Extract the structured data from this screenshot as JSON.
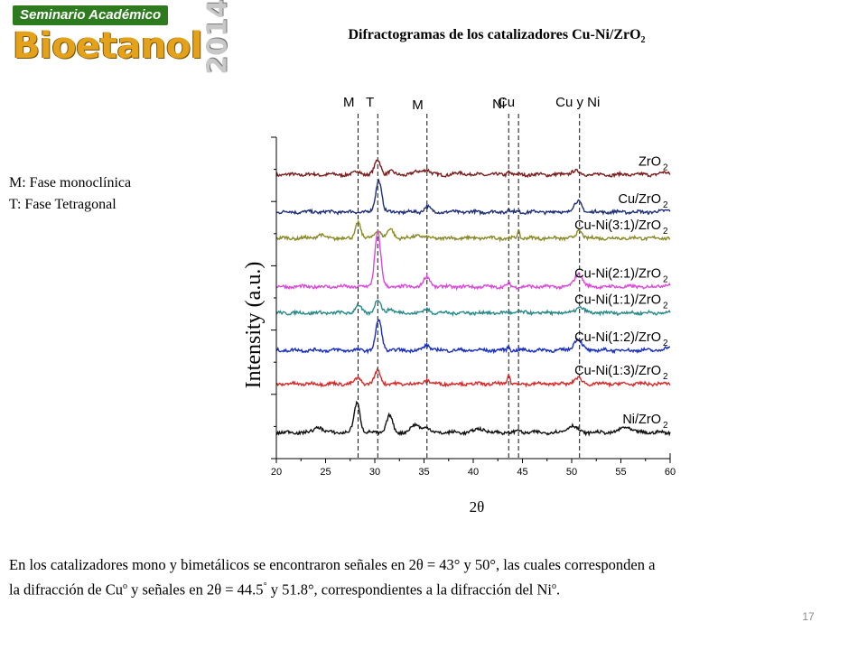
{
  "logo": {
    "banner": "Seminario Académico",
    "word": "Bioetanol",
    "year": "2014"
  },
  "title": {
    "main": "Difractogramas  de los catalizadores Cu-Ni/ZrO",
    "subscript": "2"
  },
  "phase_notes": [
    "M: Fase monoclínica",
    "T: Fase Tetragonal"
  ],
  "caption": {
    "line1": "En los catalizadores mono y bimetálicos se encontraron señales en 2θ = 43° y 50°, las cuales corresponden a",
    "line2_a": "la difracción de Cu",
    "line2_sup1": "o",
    "line2_b": " y señales en 2θ = 44.5",
    "line2_sup2": "°",
    "line2_c": " y 51.8°, correspondientes a la difracción del Ni",
    "line2_sup3": "o",
    "line2_d": "."
  },
  "page_number": "17",
  "chart_data": {
    "type": "line",
    "xlabel": "2θ",
    "ylabel": "Intensity (a.u.)",
    "xlim": [
      20,
      60
    ],
    "xticks": [
      20,
      25,
      30,
      35,
      40,
      45,
      50,
      55,
      60
    ],
    "ylim": [
      0,
      8.6
    ],
    "reference_lines": [
      {
        "label": "M",
        "x": 28.3
      },
      {
        "label": "T",
        "x": 30.3
      },
      {
        "label": "M",
        "x": 35.3
      },
      {
        "label": "Ni",
        "x": 43.6
      },
      {
        "label": "Cu",
        "x": 44.6
      },
      {
        "label": "Cu y Ni",
        "x": 50.8
      }
    ],
    "series": [
      {
        "name": "ZrO2",
        "label": "ZrO",
        "sub": "2",
        "color": "#7a1e1e",
        "offset": 7.6,
        "jitter": 0.05,
        "peaks": [
          [
            28.3,
            0.1,
            0.3
          ],
          [
            30.3,
            0.4,
            0.3
          ],
          [
            31.6,
            0.08,
            0.3
          ],
          [
            34.5,
            0.08,
            0.5
          ],
          [
            35.3,
            0.12,
            0.3
          ],
          [
            38.8,
            0.04,
            0.5
          ],
          [
            43.6,
            0.1,
            0.15
          ],
          [
            50.3,
            0.1,
            0.4
          ],
          [
            59.5,
            0.05,
            0.5
          ]
        ]
      },
      {
        "name": "Cu/ZrO2",
        "label": "Cu/ZrO",
        "sub": "2",
        "color": "#1f2f7a",
        "offset": 6.6,
        "jitter": 0.05,
        "peaks": [
          [
            30.4,
            0.85,
            0.3
          ],
          [
            35.3,
            0.15,
            0.3
          ],
          [
            43.6,
            0.1,
            0.12
          ],
          [
            50.5,
            0.18,
            0.4
          ],
          [
            50.8,
            0.12,
            0.3
          ],
          [
            59.8,
            0.06,
            0.4
          ]
        ]
      },
      {
        "name": "Cu-Ni(3:1)/ZrO2",
        "label": "Cu-Ni(3:1)/ZrO",
        "sub": "2",
        "color": "#8a8a2a",
        "offset": 5.9,
        "jitter": 0.05,
        "peaks": [
          [
            24.4,
            0.1,
            0.3
          ],
          [
            28.3,
            0.45,
            0.25
          ],
          [
            30.3,
            0.22,
            0.3
          ],
          [
            31.6,
            0.25,
            0.3
          ],
          [
            34.4,
            0.08,
            0.4
          ],
          [
            44.6,
            0.2,
            0.12
          ],
          [
            50.8,
            0.2,
            0.3
          ]
        ]
      },
      {
        "name": "Cu-Ni(2:1)/ZrO2",
        "label": "Cu-Ni(2:1)/ZrO",
        "sub": "2",
        "color": "#d94ad9",
        "offset": 4.6,
        "jitter": 0.05,
        "peaks": [
          [
            30.3,
            1.45,
            0.3
          ],
          [
            35.3,
            0.25,
            0.35
          ],
          [
            43.6,
            0.08,
            0.15
          ],
          [
            50.7,
            0.35,
            0.4
          ],
          [
            59.5,
            0.06,
            0.4
          ]
        ]
      },
      {
        "name": "Cu-Ni(1:1)/ZrO2",
        "label": "Cu-Ni(1:1)/ZrO",
        "sub": "2",
        "color": "#2a8a8a",
        "offset": 3.9,
        "jitter": 0.05,
        "peaks": [
          [
            28.3,
            0.2,
            0.3
          ],
          [
            30.3,
            0.35,
            0.3
          ],
          [
            31.6,
            0.12,
            0.3
          ],
          [
            35.3,
            0.1,
            0.3
          ],
          [
            44.6,
            0.08,
            0.12
          ],
          [
            50.8,
            0.15,
            0.4
          ]
        ]
      },
      {
        "name": "Cu-Ni(1:2)/ZrO2",
        "label": "Cu-Ni(1:2)/ZrO",
        "sub": "2",
        "color": "#1a2fbf",
        "offset": 2.9,
        "jitter": 0.05,
        "peaks": [
          [
            30.4,
            0.8,
            0.3
          ],
          [
            35.3,
            0.15,
            0.3
          ],
          [
            43.6,
            0.12,
            0.12
          ],
          [
            50.6,
            0.3,
            0.4
          ],
          [
            59.8,
            0.06,
            0.4
          ]
        ]
      },
      {
        "name": "Cu-Ni(1:3)/ZrO2",
        "label": "Cu-Ni(1:3)/ZrO",
        "sub": "2",
        "color": "#d82a2a",
        "offset": 2.0,
        "jitter": 0.05,
        "peaks": [
          [
            28.3,
            0.15,
            0.3
          ],
          [
            30.3,
            0.35,
            0.3
          ],
          [
            35.3,
            0.1,
            0.3
          ],
          [
            43.6,
            0.28,
            0.12
          ],
          [
            50.6,
            0.15,
            0.4
          ]
        ]
      },
      {
        "name": "Ni/ZrO2",
        "label": "Ni/ZrO",
        "sub": "2",
        "color": "#111111",
        "offset": 0.7,
        "jitter": 0.05,
        "peaks": [
          [
            24.3,
            0.15,
            0.4
          ],
          [
            28.2,
            0.8,
            0.3
          ],
          [
            31.5,
            0.45,
            0.3
          ],
          [
            34.2,
            0.2,
            0.5
          ],
          [
            35.3,
            0.12,
            0.3
          ],
          [
            40.7,
            0.1,
            0.5
          ],
          [
            44.6,
            0.08,
            0.15
          ],
          [
            50.0,
            0.18,
            0.5
          ],
          [
            55.5,
            0.15,
            0.5
          ]
        ]
      }
    ]
  }
}
